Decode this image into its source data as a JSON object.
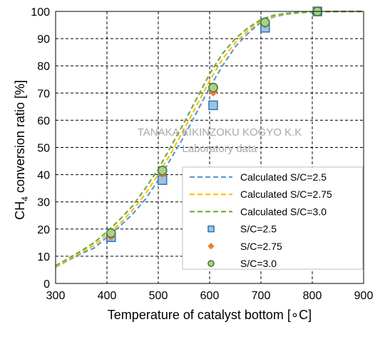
{
  "chart_data": {
    "type": "line",
    "xlabel": "Temperature of catalyst bottom [∘C]",
    "ylabel_main": "CH",
    "ylabel_sub": "4",
    "ylabel_rest": " conversion ratio [%]",
    "xlim": [
      300,
      900
    ],
    "ylim": [
      0,
      100
    ],
    "x_ticks": [
      300,
      400,
      500,
      600,
      700,
      800,
      900
    ],
    "y_ticks": [
      0,
      10,
      20,
      30,
      40,
      50,
      60,
      70,
      80,
      90,
      100
    ],
    "grid": true,
    "legend_placement": "bottom-right",
    "watermark": [
      "TANAKA KIKINZOKU KOGYO K.K",
      "Laboratory data"
    ],
    "colors": {
      "sc25": "#5b9bd5",
      "sc275": "#ffc000",
      "sc30": "#70ad47",
      "marker25_face": "#9dc3e6",
      "marker25_edge": "#2e75b6",
      "marker275_face": "#ed7d31",
      "marker30_face": "#a9d18e",
      "marker30_edge": "#548235"
    },
    "lines": [
      {
        "name": "Calculated S/C=2.5",
        "key": "sc25",
        "x": [
          300,
          325,
          350,
          375,
          400,
          425,
          450,
          475,
          500,
          525,
          550,
          575,
          600,
          625,
          650,
          675,
          700,
          725,
          750,
          775,
          800,
          850,
          900
        ],
        "y": [
          6,
          8.5,
          11,
          13,
          17,
          21,
          25.5,
          31,
          38,
          46,
          54,
          63,
          72,
          80,
          87,
          92,
          96,
          98,
          99,
          99.5,
          99.8,
          100,
          100
        ]
      },
      {
        "name": "Calculated S/C=2.75",
        "key": "sc275",
        "x": [
          300,
          325,
          350,
          375,
          400,
          425,
          450,
          475,
          500,
          525,
          550,
          575,
          600,
          625,
          650,
          675,
          700,
          725,
          750,
          775,
          800,
          850,
          900
        ],
        "y": [
          6,
          8.8,
          11.5,
          14,
          18,
          22,
          27,
          33,
          40,
          48,
          56.5,
          65.5,
          74.5,
          82.5,
          88.5,
          93,
          96.5,
          98.3,
          99.2,
          99.6,
          99.8,
          100,
          100
        ]
      },
      {
        "name": "Calculated S/C=3.0",
        "key": "sc30",
        "x": [
          300,
          325,
          350,
          375,
          400,
          425,
          450,
          475,
          500,
          525,
          550,
          575,
          600,
          625,
          650,
          675,
          700,
          725,
          750,
          775,
          800,
          850,
          900
        ],
        "y": [
          6.5,
          9.2,
          12,
          15,
          19,
          23.5,
          28.5,
          35,
          42,
          50.5,
          59,
          68,
          77,
          84.5,
          90,
          94,
          97,
          98.6,
          99.3,
          99.7,
          99.9,
          100,
          100
        ]
      }
    ],
    "points": [
      {
        "name": "S/C=2.5",
        "marker": "square",
        "x": [
          408,
          508,
          607,
          708,
          810
        ],
        "y": [
          17,
          38,
          65.5,
          94,
          100
        ]
      },
      {
        "name": "S/C=2.75",
        "marker": "diamond",
        "x": [
          408,
          508,
          607,
          708,
          810
        ],
        "y": [
          17.5,
          40.5,
          70.5,
          95.5,
          100
        ]
      },
      {
        "name": "S/C=3.0",
        "marker": "circle",
        "x": [
          408,
          508,
          607,
          708,
          810
        ],
        "y": [
          18.5,
          41.5,
          72,
          96,
          100
        ]
      }
    ]
  }
}
